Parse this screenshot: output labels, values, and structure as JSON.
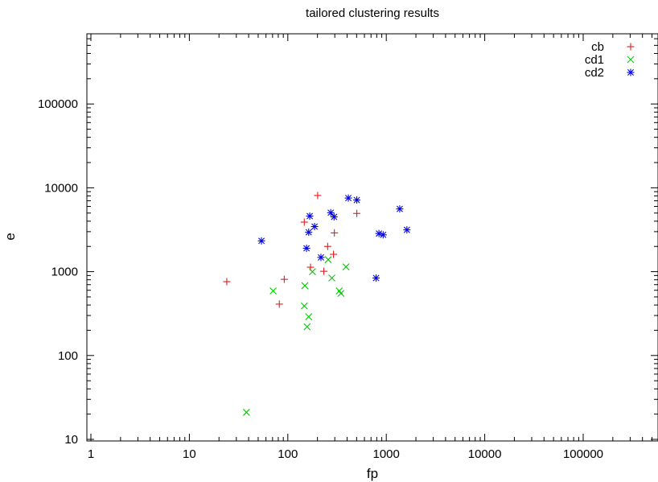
{
  "chart_data": {
    "type": "scatter",
    "title": "tailored clustering results",
    "xlabel": "fp",
    "ylabel": "e",
    "xscale": "log",
    "yscale": "log",
    "xlim": [
      1,
      500000
    ],
    "ylim": [
      10,
      700000
    ],
    "xticks": [
      1,
      10,
      100,
      1000,
      10000,
      100000
    ],
    "xtick_labels": [
      "1",
      "10",
      "100",
      "1000",
      "10000",
      "100000"
    ],
    "yticks": [
      10,
      100,
      1000,
      10000,
      100000
    ],
    "ytick_labels": [
      "10",
      "100",
      "1000",
      "10000",
      "100000"
    ],
    "grid": false,
    "legend_position": "top-right",
    "series": [
      {
        "name": "cb",
        "color": "#e41a1c",
        "marker": "plus",
        "points": [
          [
            24,
            760
          ],
          [
            82,
            410
          ],
          [
            92,
            810
          ],
          [
            147,
            3900
          ],
          [
            170,
            1130
          ],
          [
            201,
            8100
          ],
          [
            232,
            1010
          ],
          [
            254,
            2000
          ],
          [
            291,
            1610
          ],
          [
            297,
            2900
          ],
          [
            502,
            4950
          ]
        ]
      },
      {
        "name": "cd1",
        "color": "#00c800",
        "marker": "cross",
        "points": [
          [
            38,
            21
          ],
          [
            71,
            590
          ],
          [
            147,
            390
          ],
          [
            149,
            680
          ],
          [
            157,
            220
          ],
          [
            163,
            290
          ],
          [
            178,
            1000
          ],
          [
            257,
            1390
          ],
          [
            280,
            840
          ],
          [
            333,
            590
          ],
          [
            346,
            550
          ],
          [
            390,
            1140
          ]
        ]
      },
      {
        "name": "cd2",
        "color": "#0000e6",
        "marker": "star",
        "points": [
          [
            54,
            2330
          ],
          [
            155,
            1900
          ],
          [
            163,
            2950
          ],
          [
            167,
            4600
          ],
          [
            187,
            3450
          ],
          [
            217,
            1480
          ],
          [
            273,
            5050
          ],
          [
            295,
            4500
          ],
          [
            412,
            7550
          ],
          [
            502,
            7150
          ],
          [
            788,
            840
          ],
          [
            843,
            2850
          ],
          [
            930,
            2750
          ],
          [
            1370,
            5600
          ],
          [
            1620,
            3150
          ]
        ]
      }
    ]
  }
}
